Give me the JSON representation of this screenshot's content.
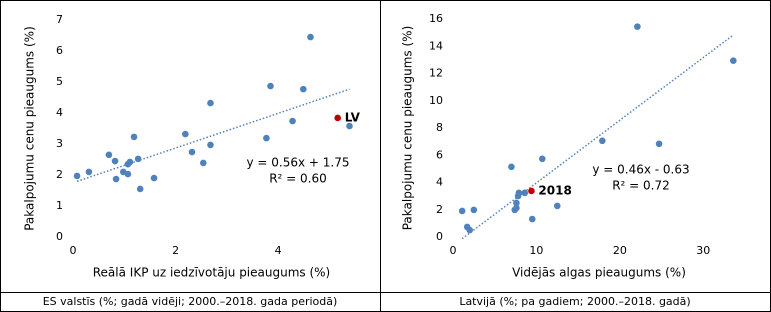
{
  "chart_data": [
    {
      "type": "scatter",
      "x_label": "Reālā IKP uz iedzīvotāju pieaugums (%)",
      "y_label": "Pakalpojumu cenu pieaugums (%)",
      "caption": "ES valstīs (%; gadā vidēji; 2000.–2018. gada periodā)",
      "color": "#4f81bd",
      "x": [
        0.08,
        0.31,
        0.7,
        0.82,
        0.84,
        0.98,
        1.07,
        1.11,
        1.07,
        1.19,
        1.27,
        1.31,
        1.58,
        2.19,
        2.32,
        2.54,
        2.68,
        2.68,
        3.77,
        3.85,
        4.28,
        4.49,
        4.63,
        5.39
      ],
      "values": [
        1.97,
        2.1,
        2.65,
        2.45,
        1.87,
        2.1,
        2.35,
        2.42,
        2.03,
        3.23,
        2.52,
        1.55,
        1.9,
        3.32,
        2.74,
        2.39,
        4.32,
        2.97,
        3.19,
        4.87,
        3.74,
        4.77,
        6.45,
        3.58
      ],
      "highlight": {
        "label": "LV",
        "x": 5.16,
        "y": 3.84,
        "color": "#c00000"
      },
      "trendline": {
        "slope": 0.56,
        "intercept": 1.75,
        "equation": "y = 0.56x + 1.75",
        "r2": "R² = 0.60"
      },
      "xlim": [
        0,
        5.4
      ],
      "xticks": [
        0,
        2,
        4
      ],
      "ylim": [
        0,
        7
      ],
      "yticks": [
        0,
        1,
        2,
        3,
        4,
        5,
        6,
        7
      ]
    },
    {
      "type": "scatter",
      "x_label": "Vidējās algas pieaugums (%)",
      "y_label": "Pakalpojumu cenu pieaugums (%)",
      "caption": "Latvijā (%; pa gadiem; 2000.–2018. gadā)",
      "color": "#4f81bd",
      "x": [
        1.1,
        1.7,
        2.0,
        2.5,
        7.0,
        7.4,
        7.6,
        7.8,
        7.9,
        7.6,
        8.6,
        9.5,
        10.7,
        12.5,
        17.9,
        22.1,
        24.7,
        33.6
      ],
      "values": [
        1.91,
        0.74,
        0.51,
        1.99,
        5.15,
        1.99,
        2.5,
        3.01,
        3.24,
        2.13,
        3.24,
        1.32,
        5.74,
        2.28,
        7.06,
        15.44,
        6.84,
        12.94
      ],
      "highlight": {
        "label": "2018",
        "x": 9.4,
        "y": 3.38,
        "color": "#c00000"
      },
      "trendline": {
        "slope": 0.46,
        "intercept": -0.63,
        "equation": "y = 0.46x - 0.63",
        "r2": "R² = 0.72"
      },
      "xlim": [
        0,
        35
      ],
      "xticks": [
        0,
        10,
        20,
        30
      ],
      "ylim": [
        0,
        16
      ],
      "yticks": [
        0,
        2,
        4,
        6,
        8,
        10,
        12,
        14,
        16
      ]
    }
  ]
}
